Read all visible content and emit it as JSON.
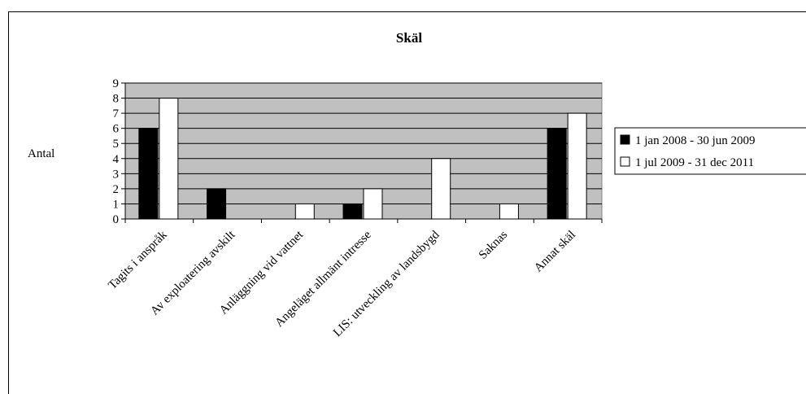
{
  "chart_data": {
    "type": "bar",
    "title": "Skäl",
    "ylabel": "Antal",
    "xlabel": "",
    "ylim": [
      0,
      9
    ],
    "yticks": [
      0,
      1,
      2,
      3,
      4,
      5,
      6,
      7,
      8,
      9
    ],
    "grid": true,
    "legend": "right",
    "plot_background": "#c0c0c0",
    "categories": [
      "Tagits i anspråk",
      "Av exploatering avskilt",
      "Anläggning vid vattnet",
      "Angeläget allmänt intresse",
      "LIS: utveckling av landsbygd",
      "Saknas",
      "Annat skäl"
    ],
    "series": [
      {
        "name": "1 jan 2008 - 30 jun 2009",
        "color": "#000000",
        "values": [
          6,
          2,
          0,
          1,
          0,
          0,
          6
        ]
      },
      {
        "name": "1 jul 2009 - 31 dec 2011",
        "color": "#ffffff",
        "values": [
          8,
          0,
          1,
          2,
          4,
          1,
          7
        ]
      }
    ]
  }
}
